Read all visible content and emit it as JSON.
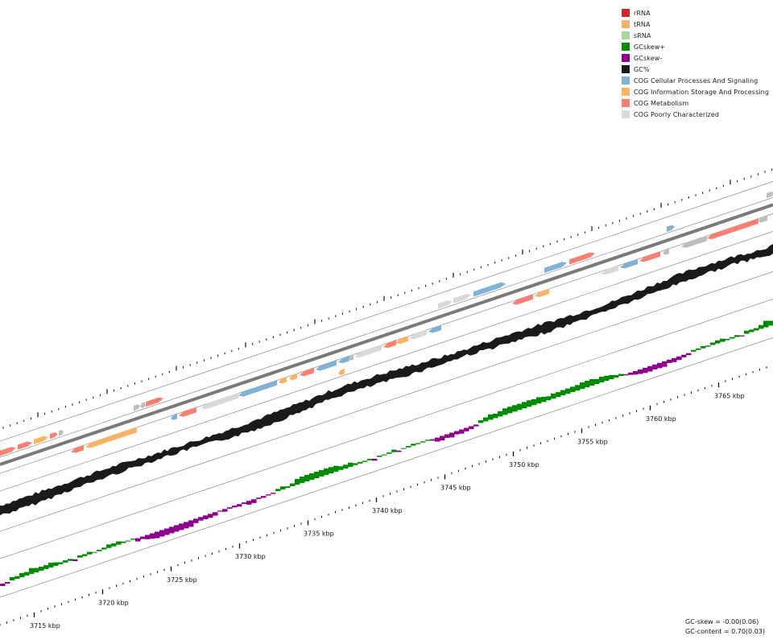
{
  "legend": [
    {
      "label": "rRNA",
      "color": "#d62728"
    },
    {
      "label": "tRNA",
      "color": "#fdae6b"
    },
    {
      "label": "sRNA",
      "color": "#a1d99b"
    },
    {
      "label": "GCskew+",
      "color": "#008c00"
    },
    {
      "label": "GCskew-",
      "color": "#8c008c"
    },
    {
      "label": "GC%",
      "color": "#1a1a1a"
    },
    {
      "label": "COG Cellular Processes And Signaling",
      "color": "#7fb2d5"
    },
    {
      "label": "COG Information Storage And Processing",
      "color": "#fdb462"
    },
    {
      "label": "COG Metabolism",
      "color": "#fb8072"
    },
    {
      "label": "COG Poorly Characterized",
      "color": "#d9d9d9"
    }
  ],
  "ruler": {
    "unit": "kbp",
    "labels": [
      "3715 kbp",
      "3720 kbp",
      "3725 kbp",
      "3730 kbp",
      "3735 kbp",
      "3740 kbp",
      "3745 kbp",
      "3750 kbp",
      "3755 kbp",
      "3760 kbp",
      "3765 kbp"
    ]
  },
  "stats": {
    "gc_skew": "GC-skew = -0.00(0.06)",
    "gc_content": "GC-content = 0.70(0.03)"
  },
  "colors": {
    "backbone": "#7a7a7a",
    "track_line": "#999999",
    "tick": "#111111",
    "gene_other": "#bdbdbd"
  }
}
